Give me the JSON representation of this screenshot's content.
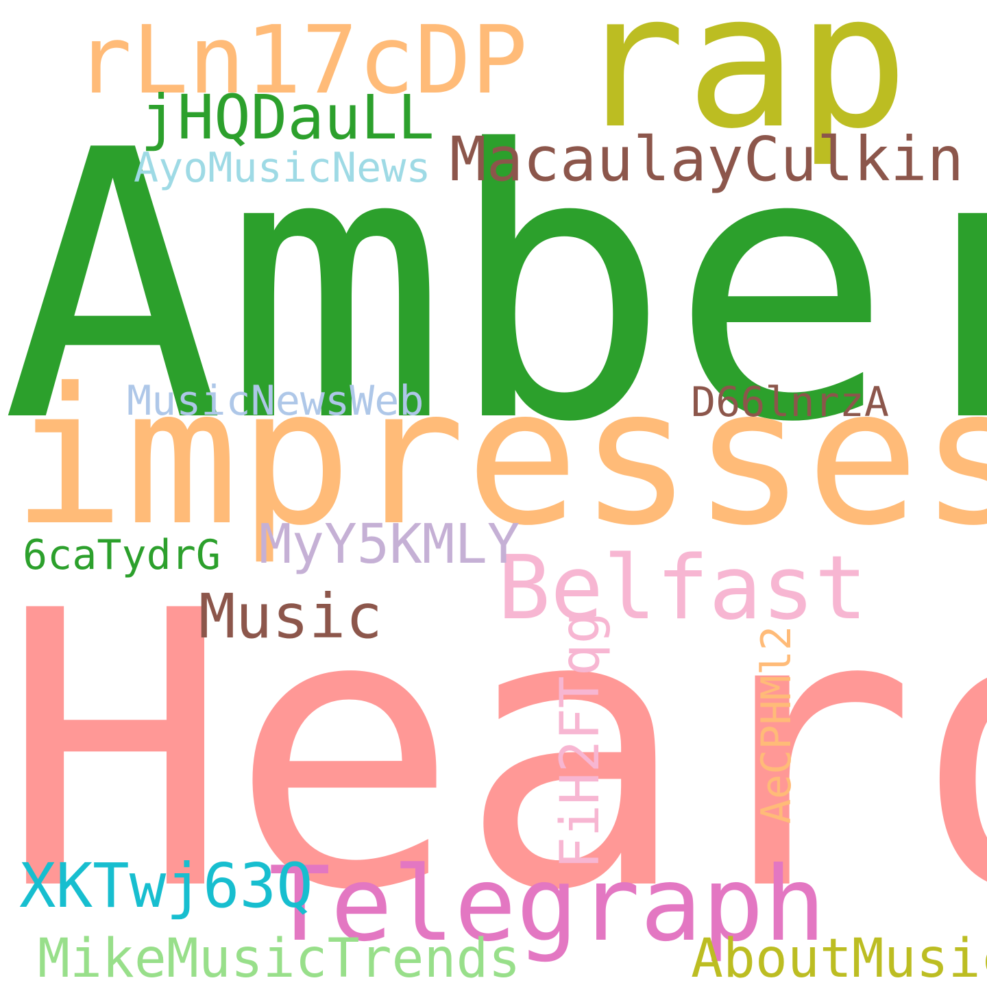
{
  "words": {
    "amber": {
      "text": "Amber",
      "color": "#2ca02c"
    },
    "heard": {
      "text": "Heard",
      "color": "#ff9896"
    },
    "impresses": {
      "text": "impresses",
      "color": "#ffbb78"
    },
    "rap": {
      "text": "rap",
      "color": "#bcbd22"
    },
    "rln": {
      "text": "rLn17cDP",
      "color": "#ffbb78"
    },
    "telegraph": {
      "text": "Telegraph",
      "color": "#e377c2"
    },
    "belfast": {
      "text": "Belfast",
      "color": "#f7b6d2"
    },
    "macaulay": {
      "text": "MacaulayCulkin",
      "color": "#8c564b"
    },
    "music": {
      "text": "Music",
      "color": "#8c564b"
    },
    "jhq": {
      "text": "jHQDauLL",
      "color": "#2ca02c"
    },
    "myy": {
      "text": "MyY5KMLY",
      "color": "#c5b0d5"
    },
    "xkt": {
      "text": "XKTwj63Q",
      "color": "#17becf"
    },
    "aboutmusic": {
      "text": "AboutMusic",
      "color": "#bcbd22"
    },
    "mike": {
      "text": "MikeMusicTrends",
      "color": "#98df8a"
    },
    "ayo": {
      "text": "AyoMusicNews",
      "color": "#9edae5"
    },
    "mnw": {
      "text": "MusicNewsWeb",
      "color": "#aec7e8"
    },
    "d66": {
      "text": "D66lnrzA",
      "color": "#8c564b"
    },
    "sixca": {
      "text": "6caTydrG",
      "color": "#2ca02c"
    },
    "fih": {
      "text": "FiH2FTqg",
      "color": "#f7b6d2"
    },
    "aec": {
      "text": "AeCPHMl2",
      "color": "#ffbb78"
    }
  }
}
